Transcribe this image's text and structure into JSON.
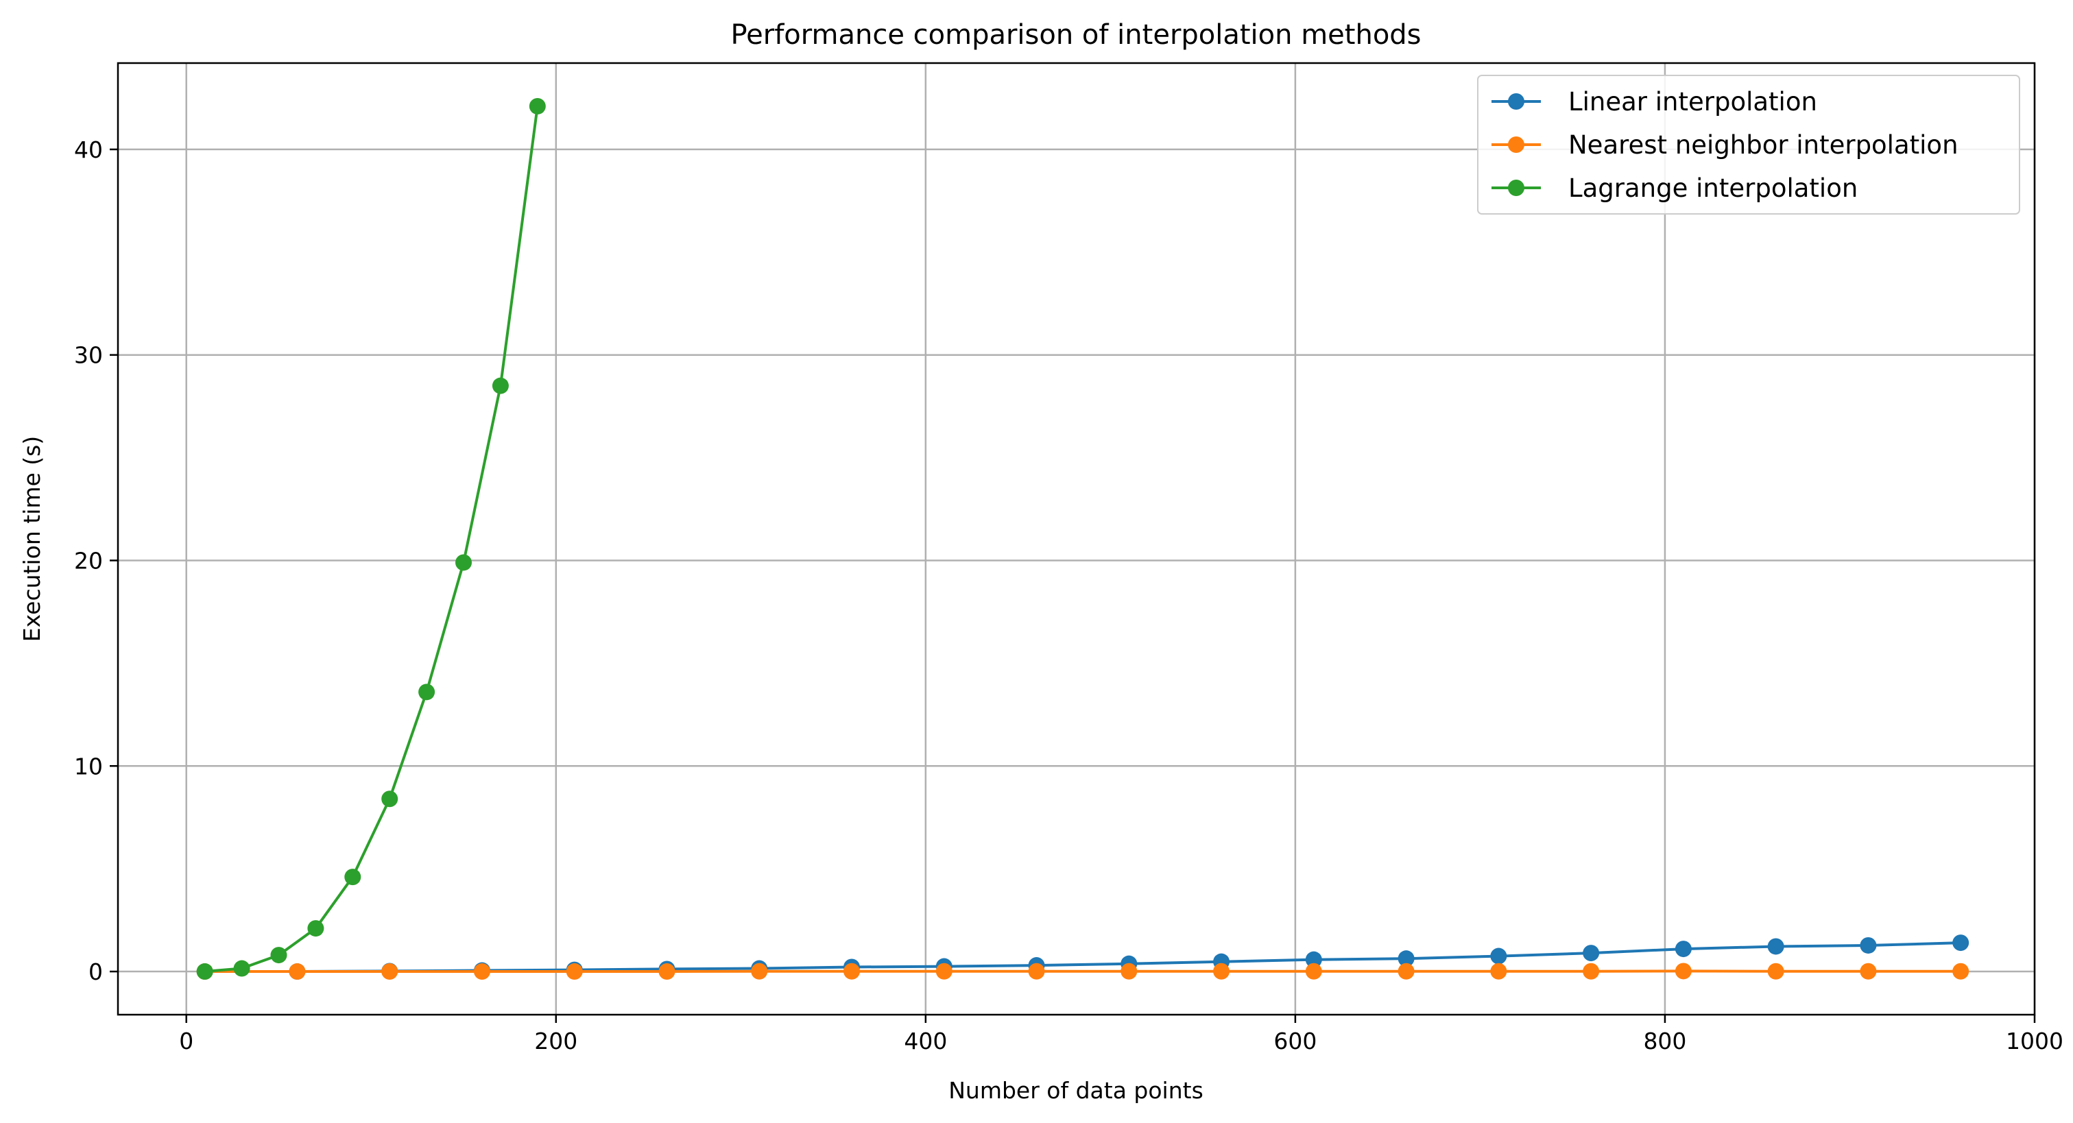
{
  "chart_data": {
    "type": "line",
    "title": "Performance comparison of interpolation methods",
    "xlabel": "Number of data points",
    "ylabel": "Execution time (s)",
    "xlim": [
      -37,
      1000
    ],
    "ylim": [
      -2.1,
      44.2
    ],
    "xticks": [
      0,
      200,
      400,
      600,
      800,
      1000
    ],
    "yticks": [
      0,
      10,
      20,
      30,
      40
    ],
    "grid": true,
    "legend_position": "top-right",
    "marker": "circle",
    "series": [
      {
        "name": "Linear interpolation",
        "color": "#1f77b4",
        "x": [
          10,
          60,
          110,
          160,
          210,
          260,
          310,
          360,
          410,
          460,
          510,
          560,
          610,
          660,
          710,
          760,
          810,
          860,
          910,
          960
        ],
        "y": [
          0.0,
          0.0,
          0.02,
          0.05,
          0.08,
          0.12,
          0.15,
          0.22,
          0.25,
          0.3,
          0.38,
          0.48,
          0.58,
          0.63,
          0.75,
          0.9,
          1.1,
          1.22,
          1.27,
          1.4
        ]
      },
      {
        "name": "Nearest neighbor interpolation",
        "color": "#ff7f0e",
        "x": [
          10,
          60,
          110,
          160,
          210,
          260,
          310,
          360,
          410,
          460,
          510,
          560,
          610,
          660,
          710,
          760,
          810,
          860,
          910,
          960
        ],
        "y": [
          0.0,
          0.0,
          0.0,
          0.0,
          0.0,
          0.0,
          0.01,
          0.01,
          0.01,
          0.01,
          0.01,
          0.01,
          0.01,
          0.01,
          0.01,
          0.01,
          0.02,
          0.01,
          0.01,
          0.01
        ]
      },
      {
        "name": "Lagrange interpolation",
        "color": "#2ca02c",
        "x": [
          10,
          30,
          50,
          70,
          90,
          110,
          130,
          150,
          170,
          190
        ],
        "y": [
          0.0,
          0.15,
          0.8,
          2.1,
          4.6,
          8.4,
          13.6,
          19.9,
          28.5,
          42.1
        ]
      }
    ]
  }
}
